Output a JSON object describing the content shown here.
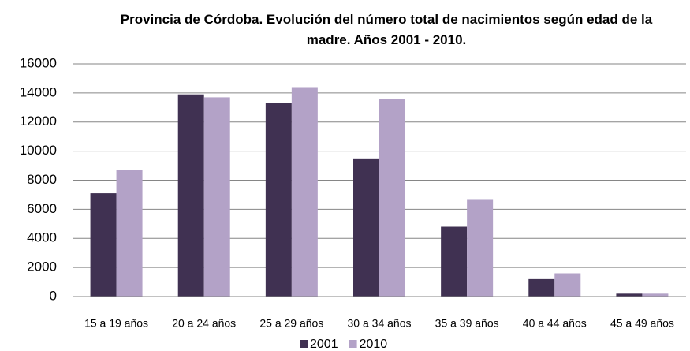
{
  "chart_data": {
    "type": "bar",
    "title": "Provincia de Córdoba. Evolución del número total de nacimientos según edad de la madre. Años 2001 - 2010.",
    "categories": [
      "15 a 19 años",
      "20 a 24 años",
      "25 a 29 años",
      "30 a 34 años",
      "35 a 39 años",
      "40 a 44 años",
      "45 a 49 años"
    ],
    "series": [
      {
        "name": "2001",
        "color": "#403152",
        "values": [
          7100,
          13900,
          13300,
          9500,
          4800,
          1200,
          200
        ]
      },
      {
        "name": "2010",
        "color": "#b3a2c7",
        "values": [
          8700,
          13700,
          14400,
          13600,
          6700,
          1600,
          200
        ]
      }
    ],
    "ylim": [
      0,
      16000
    ],
    "yticks": [
      0,
      2000,
      4000,
      6000,
      8000,
      10000,
      12000,
      14000,
      16000
    ],
    "grid": true,
    "legend": "bottom"
  }
}
